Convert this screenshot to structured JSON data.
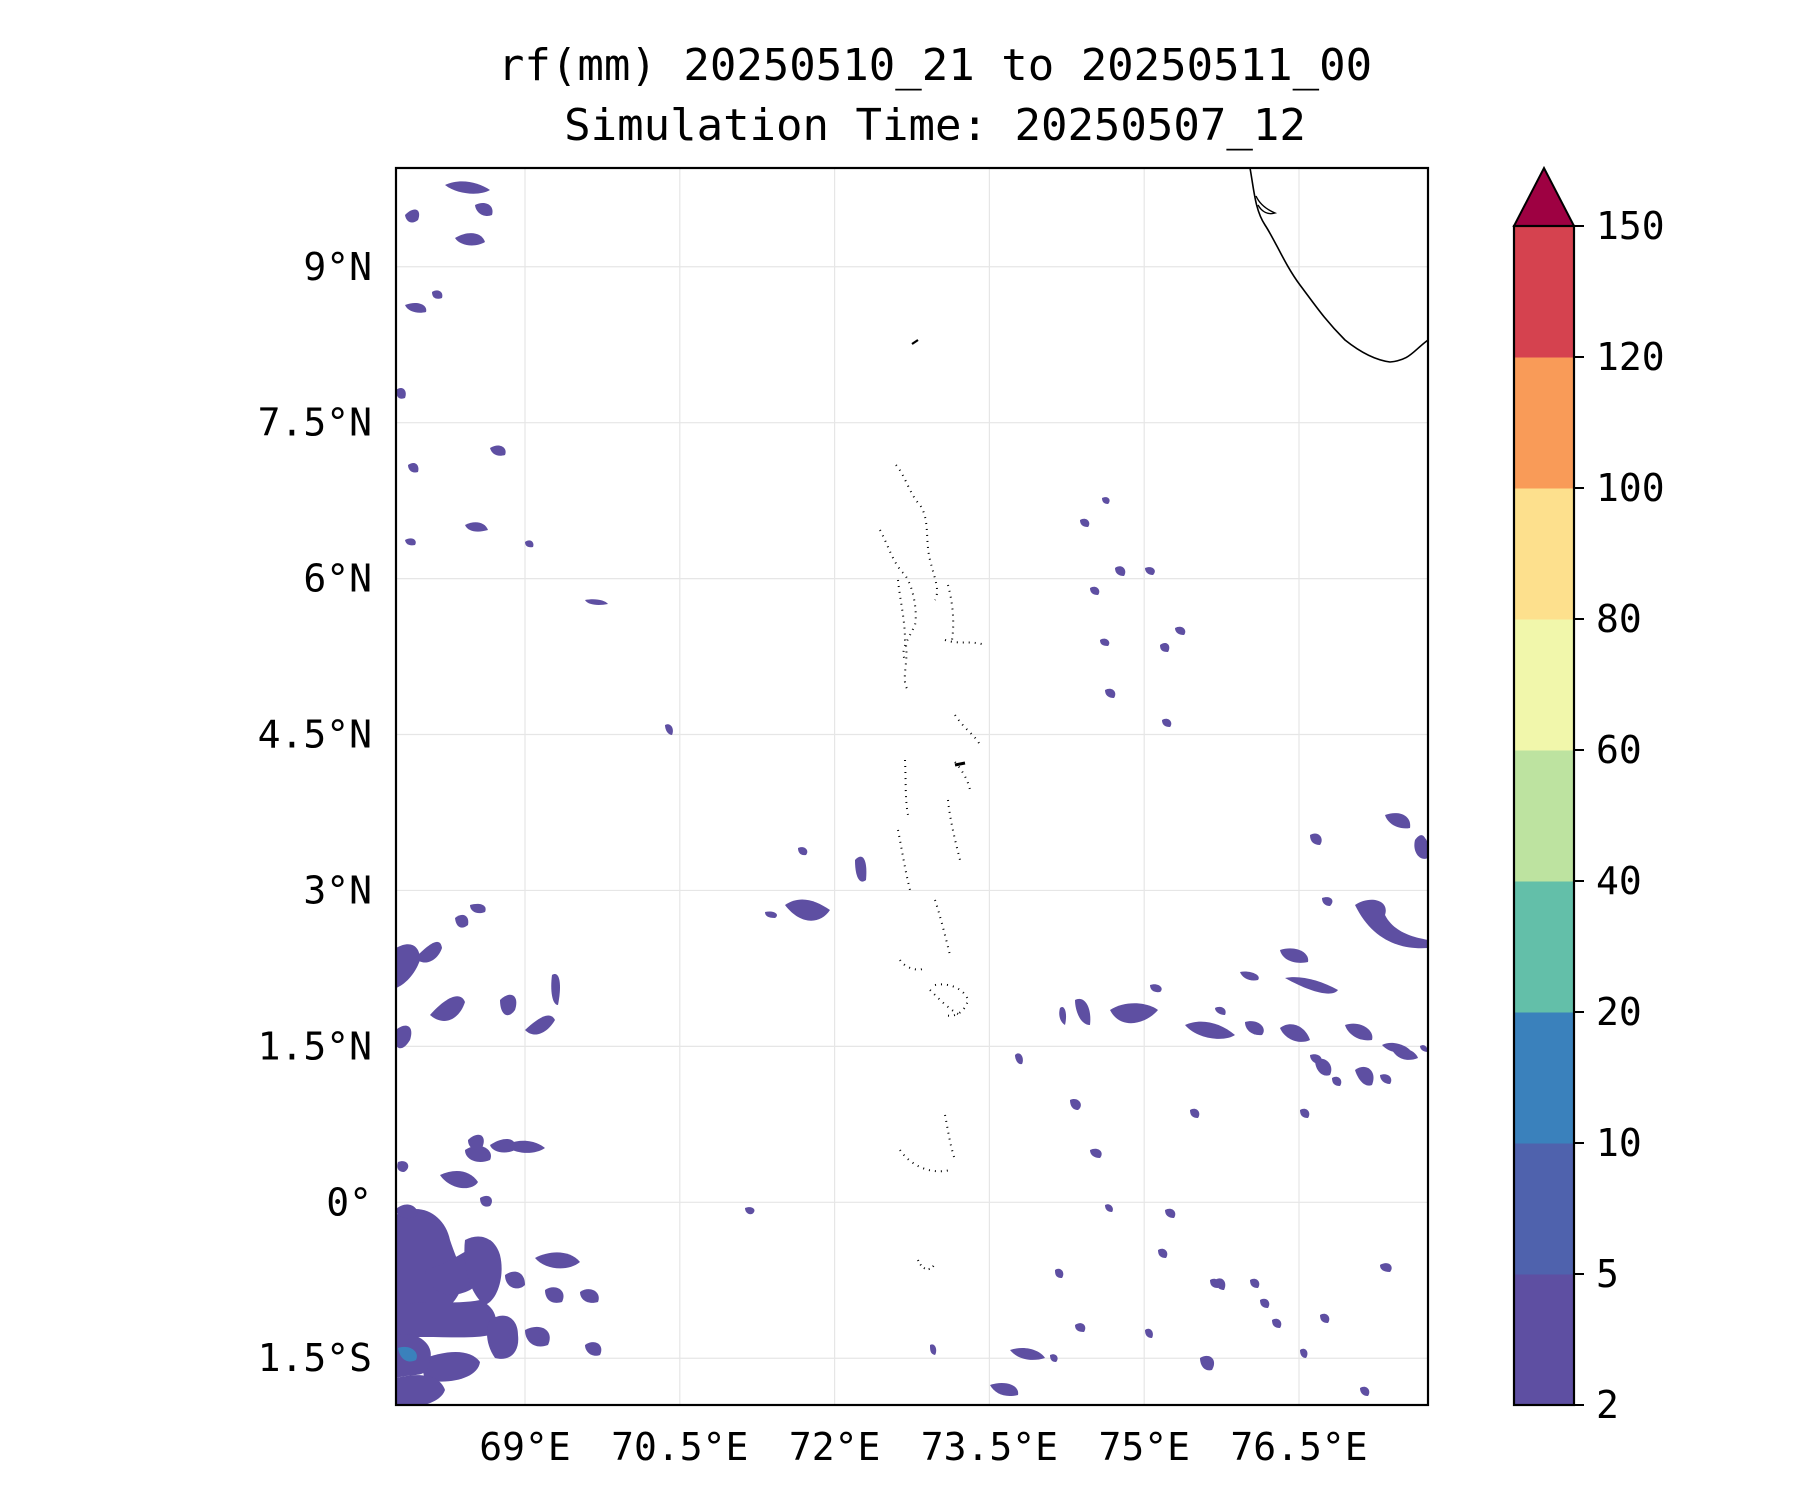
{
  "title": {
    "line1": "rf(mm) 20250510_21 to 20250511_00",
    "line2": "Simulation Time: 20250507_12"
  },
  "map": {
    "lon_range": [
      67.75,
      77.75
    ],
    "lat_range": [
      -1.95,
      9.95
    ],
    "lon_ticks": [
      {
        "value": 69.0,
        "label": "69°E"
      },
      {
        "value": 70.5,
        "label": "70.5°E"
      },
      {
        "value": 72.0,
        "label": "72°E"
      },
      {
        "value": 73.5,
        "label": "73.5°E"
      },
      {
        "value": 75.0,
        "label": "75°E"
      },
      {
        "value": 76.5,
        "label": "76.5°E"
      }
    ],
    "lat_ticks": [
      {
        "value": 9.0,
        "label": "9°N"
      },
      {
        "value": 7.5,
        "label": "7.5°N"
      },
      {
        "value": 6.0,
        "label": "6°N"
      },
      {
        "value": 4.5,
        "label": "4.5°N"
      },
      {
        "value": 3.0,
        "label": "3°N"
      },
      {
        "value": 1.5,
        "label": "1.5°N"
      },
      {
        "value": 0.0,
        "label": "0°"
      },
      {
        "value": -1.5,
        "label": "1.5°S"
      }
    ],
    "gridlines": true
  },
  "colorbar": {
    "levels": [
      {
        "label": "2",
        "color": "#5e4fa2"
      },
      {
        "label": "5",
        "color": "#4f62ad"
      },
      {
        "label": "10",
        "color": "#3a81bc"
      },
      {
        "label": "20",
        "color": "#63bfa9"
      },
      {
        "label": "40",
        "color": "#bde3a0"
      },
      {
        "label": "60",
        "color": "#f1f7ab"
      },
      {
        "label": "80",
        "color": "#fde08d"
      },
      {
        "label": "100",
        "color": "#f99b58"
      },
      {
        "label": "120",
        "color": "#d5424f"
      },
      {
        "label": "150",
        "color": null
      }
    ],
    "extend_color": "#9e0142"
  }
}
